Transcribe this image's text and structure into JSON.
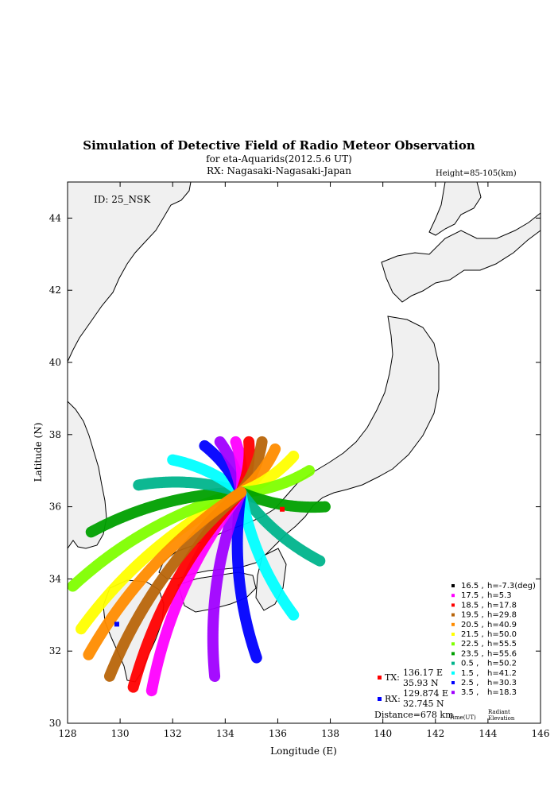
{
  "title": "Simulation of Detective Field of Radio Meteor Observation",
  "subtitle_shower": "for eta-Aquarids(2012.5.6 UT)",
  "subtitle_rx": "RX: Nagasaki-Nagasaki-Japan",
  "height_label": "Height=85-105(km)",
  "id_label": "ID: 25_NSK",
  "map": {
    "xlabel": "Longitude (E)",
    "ylabel": "Latitude (N)",
    "xlim": [
      128,
      146
    ],
    "ylim": [
      30,
      45
    ],
    "xticks": [
      "128",
      "130",
      "132",
      "134",
      "136",
      "138",
      "140",
      "142",
      "144",
      "146"
    ],
    "yticks": [
      "30",
      "32",
      "34",
      "36",
      "38",
      "40",
      "42",
      "44"
    ]
  },
  "legend": [
    {
      "time": "16.5",
      "h": "h=-7.3(deg)",
      "color": "#000000"
    },
    {
      "time": "17.5",
      "h": "h=5.3",
      "color": "#ff00ff"
    },
    {
      "time": "18.5",
      "h": "h=17.8",
      "color": "#ff0000"
    },
    {
      "time": "19.5",
      "h": "h=29.8",
      "color": "#b8650a"
    },
    {
      "time": "20.5",
      "h": "h=40.9",
      "color": "#ff8c00"
    },
    {
      "time": "21.5",
      "h": "h=50.0",
      "color": "#ffff00"
    },
    {
      "time": "22.5",
      "h": "h=55.5",
      "color": "#80ff00"
    },
    {
      "time": "23.5",
      "h": "h=55.6",
      "color": "#00a000"
    },
    {
      "time": "0.5",
      "h": "h=50.2",
      "color": "#00b48c"
    },
    {
      "time": "1.5",
      "h": "h=41.2",
      "color": "#00ffff"
    },
    {
      "time": "2.5",
      "h": "h=30.3",
      "color": "#0000ff"
    },
    {
      "time": "3.5",
      "h": "h=18.3",
      "color": "#a000ff"
    }
  ],
  "legend_footer": {
    "time_label": "Time(UT)",
    "radiant_label1": "Radiant",
    "radiant_label2": "Elevation"
  },
  "tx": {
    "label": "TX:",
    "lon": "136.17 E",
    "lat": "35.93 N",
    "color": "#ff0000",
    "lon_value": 136.17,
    "lat_value": 35.93
  },
  "rx": {
    "label": "RX:",
    "lon": "129.874 E",
    "lat": "32.745 N",
    "color": "#0000ff",
    "lon_value": 129.874,
    "lat_value": 32.745
  },
  "distance": "Distance=678 km",
  "fans": [
    {
      "time": "21.5",
      "color": "#ffff00",
      "end": [
        128.5,
        32.6
      ]
    },
    {
      "time": "22.5",
      "color": "#80ff00",
      "end": [
        128.2,
        33.8
      ]
    },
    {
      "time": "23.5",
      "color": "#00a000",
      "end": [
        128.9,
        35.3
      ]
    },
    {
      "time": "0.5",
      "color": "#00b48c",
      "end": [
        130.7,
        36.6
      ]
    },
    {
      "time": "1.5",
      "color": "#00ffff",
      "end": [
        132.0,
        37.3
      ]
    },
    {
      "time": "2.5",
      "color": "#0000ff",
      "end": [
        133.2,
        37.7
      ]
    },
    {
      "time": "3.5",
      "color": "#a000ff",
      "end": [
        133.8,
        37.8
      ]
    },
    {
      "time": "17.5",
      "color": "#ff00ff",
      "end": [
        134.4,
        37.8
      ]
    },
    {
      "time": "18.5",
      "color": "#ff0000",
      "end": [
        134.9,
        37.8
      ]
    },
    {
      "time": "19.5",
      "color": "#b8650a",
      "end": [
        135.4,
        37.8
      ]
    },
    {
      "time": "20.5",
      "color": "#ff8c00",
      "end": [
        135.9,
        37.6
      ]
    },
    {
      "time": "21.5b",
      "color": "#ffff00",
      "end": [
        136.6,
        37.4
      ]
    },
    {
      "time": "22.5b",
      "color": "#80ff00",
      "end": [
        137.2,
        37.0
      ]
    },
    {
      "time": "23.5b",
      "color": "#00a000",
      "end": [
        137.8,
        36.0
      ]
    },
    {
      "time": "0.5b",
      "color": "#00b48c",
      "end": [
        137.6,
        34.5
      ]
    },
    {
      "time": "1.5b",
      "color": "#00ffff",
      "end": [
        136.6,
        33.0
      ]
    },
    {
      "time": "2.5b",
      "color": "#0000ff",
      "end": [
        135.2,
        31.8
      ]
    },
    {
      "time": "3.5b",
      "color": "#a000ff",
      "end": [
        133.6,
        31.3
      ]
    },
    {
      "time": "17.5b",
      "color": "#ff00ff",
      "end": [
        131.2,
        30.9
      ]
    },
    {
      "time": "18.5b",
      "color": "#ff0000",
      "end": [
        130.5,
        31.0
      ]
    },
    {
      "time": "19.5b",
      "color": "#b8650a",
      "end": [
        129.6,
        31.3
      ]
    },
    {
      "time": "20.5b",
      "color": "#ff8c00",
      "end": [
        128.8,
        31.9
      ]
    }
  ]
}
